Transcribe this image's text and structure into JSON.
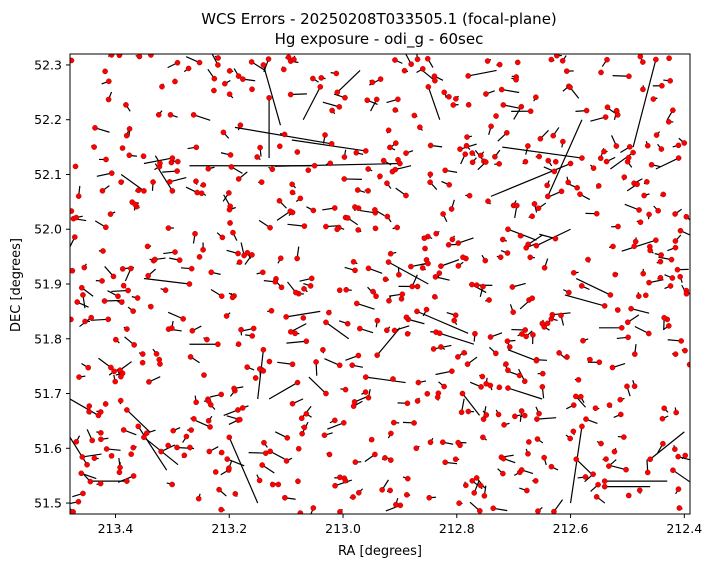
{
  "chart_data": {
    "type": "scatter",
    "title": "WCS Errors - 20250208T033505.1 (focal-plane)",
    "subtitle": "Hg exposure - odi_g - 60sec",
    "xlabel": "RA [degrees]",
    "ylabel": "DEC [degrees]",
    "xlim": [
      213.48,
      212.39
    ],
    "ylim": [
      51.48,
      52.32
    ],
    "x_inverted": true,
    "grid": false,
    "x_ticks": [
      213.4,
      213.2,
      213.0,
      212.8,
      212.6,
      212.4
    ],
    "x_tick_labels": [
      "213.4",
      "213.2",
      "213.0",
      "212.8",
      "212.6",
      "212.4"
    ],
    "y_ticks": [
      51.5,
      51.6,
      51.7,
      51.8,
      51.9,
      52.0,
      52.1,
      52.2,
      52.3
    ],
    "y_tick_labels": [
      "51.5",
      "51.6",
      "51.7",
      "51.8",
      "51.9",
      "52.0",
      "52.1",
      "52.2",
      "52.3"
    ],
    "point_color": "#ff0000",
    "point_edge_color": "#8b0000",
    "vector_color": "#000000",
    "star_count": 700,
    "random_seed": 20250208,
    "vectors": [
      {
        "x": 213.02,
        "y": 52.156,
        "dx": 0.17,
        "dy": 0.03
      },
      {
        "x": 213.05,
        "y": 52.116,
        "dx": 0.22,
        "dy": 0.0
      },
      {
        "x": 212.9,
        "y": 52.12,
        "dx": 0.22,
        "dy": -0.005
      },
      {
        "x": 212.96,
        "y": 52.143,
        "dx": 0.13,
        "dy": 0.02
      },
      {
        "x": 212.58,
        "y": 52.13,
        "dx": 0.14,
        "dy": 0.02
      },
      {
        "x": 212.6,
        "y": 52.12,
        "dx": 0.14,
        "dy": -0.06
      },
      {
        "x": 212.45,
        "y": 52.31,
        "dx": 0.04,
        "dy": -0.16
      },
      {
        "x": 212.64,
        "y": 52.06,
        "dx": -0.06,
        "dy": 0.14
      },
      {
        "x": 213.14,
        "y": 52.3,
        "dx": -0.03,
        "dy": -0.11
      },
      {
        "x": 213.13,
        "y": 52.24,
        "dx": 0.0,
        "dy": -0.11
      },
      {
        "x": 212.92,
        "y": 51.94,
        "dx": -0.07,
        "dy": -0.04
      },
      {
        "x": 212.87,
        "y": 51.85,
        "dx": -0.09,
        "dy": -0.04
      },
      {
        "x": 212.83,
        "y": 51.81,
        "dx": -0.06,
        "dy": -0.02
      },
      {
        "x": 213.22,
        "y": 51.79,
        "dx": 0.05,
        "dy": 0.0
      },
      {
        "x": 212.96,
        "y": 51.73,
        "dx": -0.07,
        "dy": -0.01
      },
      {
        "x": 213.14,
        "y": 51.78,
        "dx": 0.01,
        "dy": -0.09
      },
      {
        "x": 213.2,
        "y": 51.62,
        "dx": -0.05,
        "dy": -0.12
      },
      {
        "x": 212.54,
        "y": 51.54,
        "dx": -0.11,
        "dy": 0.0
      },
      {
        "x": 212.54,
        "y": 51.53,
        "dx": -0.08,
        "dy": 0.0
      },
      {
        "x": 212.42,
        "y": 51.56,
        "dx": -0.07,
        "dy": -0.05
      },
      {
        "x": 212.46,
        "y": 51.58,
        "dx": -0.06,
        "dy": 0.05
      },
      {
        "x": 212.58,
        "y": 51.64,
        "dx": 0.02,
        "dy": -0.14
      },
      {
        "x": 212.59,
        "y": 51.58,
        "dx": -0.03,
        "dy": -0.03
      },
      {
        "x": 212.66,
        "y": 51.97,
        "dx": -0.06,
        "dy": 0.03
      },
      {
        "x": 212.71,
        "y": 52.0,
        "dx": -0.05,
        "dy": -0.02
      },
      {
        "x": 212.78,
        "y": 52.28,
        "dx": -0.05,
        "dy": 0.01
      },
      {
        "x": 212.85,
        "y": 52.26,
        "dx": -0.02,
        "dy": -0.06
      },
      {
        "x": 213.04,
        "y": 52.26,
        "dx": 0.03,
        "dy": -0.06
      },
      {
        "x": 213.01,
        "y": 52.25,
        "dx": -0.04,
        "dy": 0.04
      },
      {
        "x": 213.22,
        "y": 52.3,
        "dx": 0.02,
        "dy": 0.04
      },
      {
        "x": 213.3,
        "y": 52.13,
        "dx": 0.05,
        "dy": -0.01
      },
      {
        "x": 213.35,
        "y": 52.07,
        "dx": 0.04,
        "dy": 0.03
      },
      {
        "x": 213.3,
        "y": 52.07,
        "dx": 0.03,
        "dy": 0.05
      },
      {
        "x": 213.27,
        "y": 51.9,
        "dx": 0.08,
        "dy": 0.01
      },
      {
        "x": 213.38,
        "y": 51.67,
        "dx": -0.04,
        "dy": -0.04
      },
      {
        "x": 213.43,
        "y": 51.66,
        "dx": 0.05,
        "dy": 0.03
      },
      {
        "x": 213.36,
        "y": 51.64,
        "dx": -0.05,
        "dy": -0.08
      },
      {
        "x": 213.35,
        "y": 51.62,
        "dx": -0.06,
        "dy": -0.05
      },
      {
        "x": 213.45,
        "y": 51.57,
        "dx": 0.03,
        "dy": 0.05
      },
      {
        "x": 213.38,
        "y": 51.54,
        "dx": 0.06,
        "dy": 0.0
      },
      {
        "x": 213.03,
        "y": 51.7,
        "dx": 0.03,
        "dy": 0.03
      },
      {
        "x": 213.08,
        "y": 51.72,
        "dx": 0.05,
        "dy": -0.03
      },
      {
        "x": 212.94,
        "y": 51.77,
        "dx": -0.04,
        "dy": 0.05
      },
      {
        "x": 212.79,
        "y": 51.7,
        "dx": -0.03,
        "dy": -0.04
      },
      {
        "x": 212.66,
        "y": 51.76,
        "dx": 0.05,
        "dy": 0.02
      },
      {
        "x": 212.71,
        "y": 51.71,
        "dx": -0.06,
        "dy": -0.02
      },
      {
        "x": 212.53,
        "y": 51.88,
        "dx": 0.06,
        "dy": 0.03
      },
      {
        "x": 212.51,
        "y": 51.82,
        "dx": 0.04,
        "dy": 0.0
      },
      {
        "x": 212.54,
        "y": 51.86,
        "dx": 0.07,
        "dy": 0.02
      },
      {
        "x": 212.45,
        "y": 51.98,
        "dx": 0.06,
        "dy": -0.02
      },
      {
        "x": 212.49,
        "y": 52.14,
        "dx": 0.04,
        "dy": -0.03
      },
      {
        "x": 212.41,
        "y": 52.13,
        "dx": 0.04,
        "dy": -0.02
      },
      {
        "x": 213.1,
        "y": 51.84,
        "dx": -0.06,
        "dy": 0.01
      },
      {
        "x": 213.03,
        "y": 51.83,
        "dx": -0.04,
        "dy": -0.03
      }
    ]
  }
}
